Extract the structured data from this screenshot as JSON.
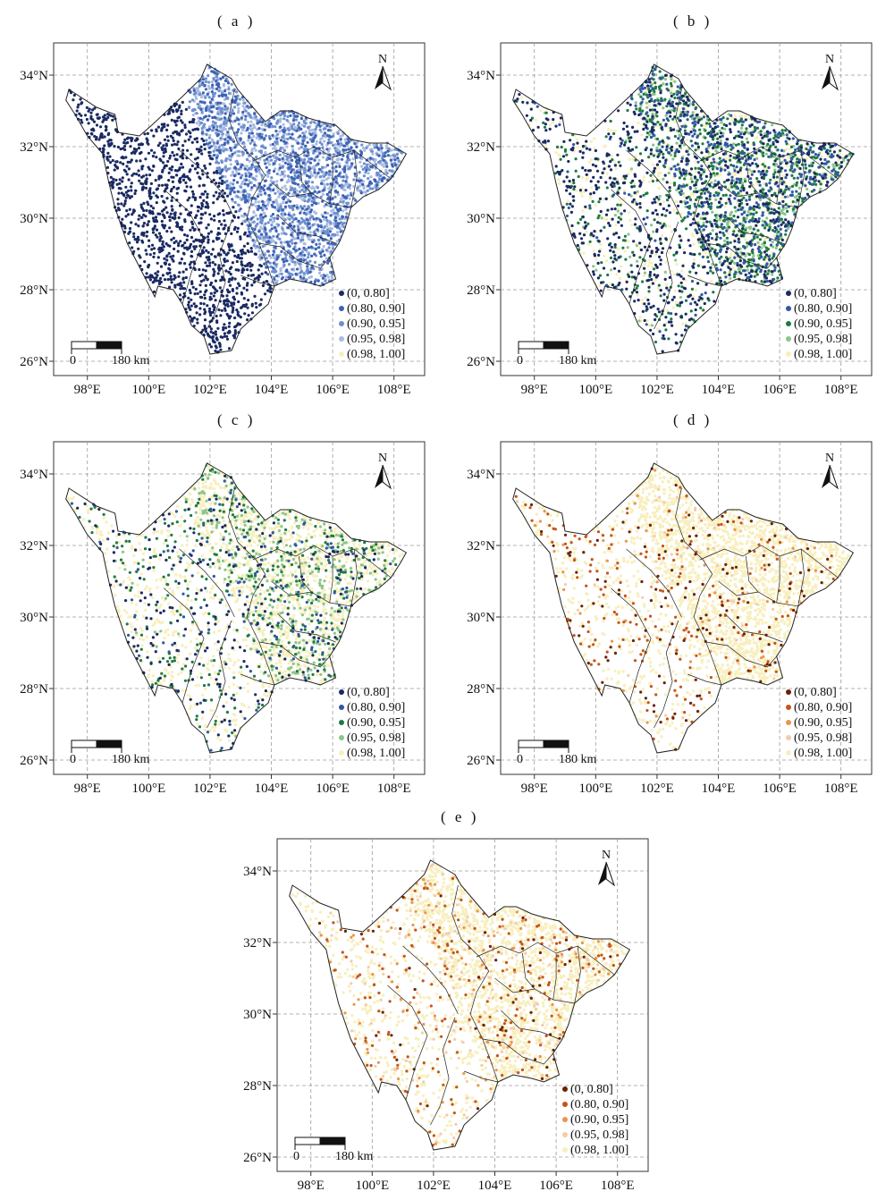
{
  "figure": {
    "x_ticks": [
      "98°E",
      "100°E",
      "102°E",
      "104°E",
      "106°E",
      "108°E"
    ],
    "y_ticks": [
      "26°N",
      "28°N",
      "30°N",
      "32°N",
      "34°N"
    ],
    "north_label": "N",
    "scale_bar": {
      "zero": "0",
      "distance": "180 km"
    },
    "legend_labels": [
      "(0, 0.80]",
      "(0.80, 0.90]",
      "(0.90, 0.95]",
      "(0.95, 0.98]",
      "(0.98, 1.00]"
    ]
  },
  "panels": [
    {
      "id": "a",
      "title": "( a )",
      "palette": [
        "#1a2a63",
        "#3d62b5",
        "#6f8fcd",
        "#a9bce0",
        "#f8efbe"
      ],
      "pattern": "a"
    },
    {
      "id": "b",
      "title": "( b )",
      "palette": [
        "#1a2a63",
        "#3157a8",
        "#1f7a45",
        "#8cc58a",
        "#f8efbe"
      ],
      "pattern": "b"
    },
    {
      "id": "c",
      "title": "( c )",
      "palette": [
        "#1a2a63",
        "#2d57a3",
        "#1f7a45",
        "#8cc58a",
        "#f8efbe"
      ],
      "pattern": "c"
    },
    {
      "id": "d",
      "title": "( d )",
      "palette": [
        "#6b2208",
        "#c2561a",
        "#e9964d",
        "#f3ccab",
        "#f8efbe"
      ],
      "pattern": "d"
    },
    {
      "id": "e",
      "title": "( e )",
      "palette": [
        "#6b2208",
        "#c2561a",
        "#e9964d",
        "#f3ccab",
        "#f8efbe"
      ],
      "pattern": "e"
    }
  ]
}
